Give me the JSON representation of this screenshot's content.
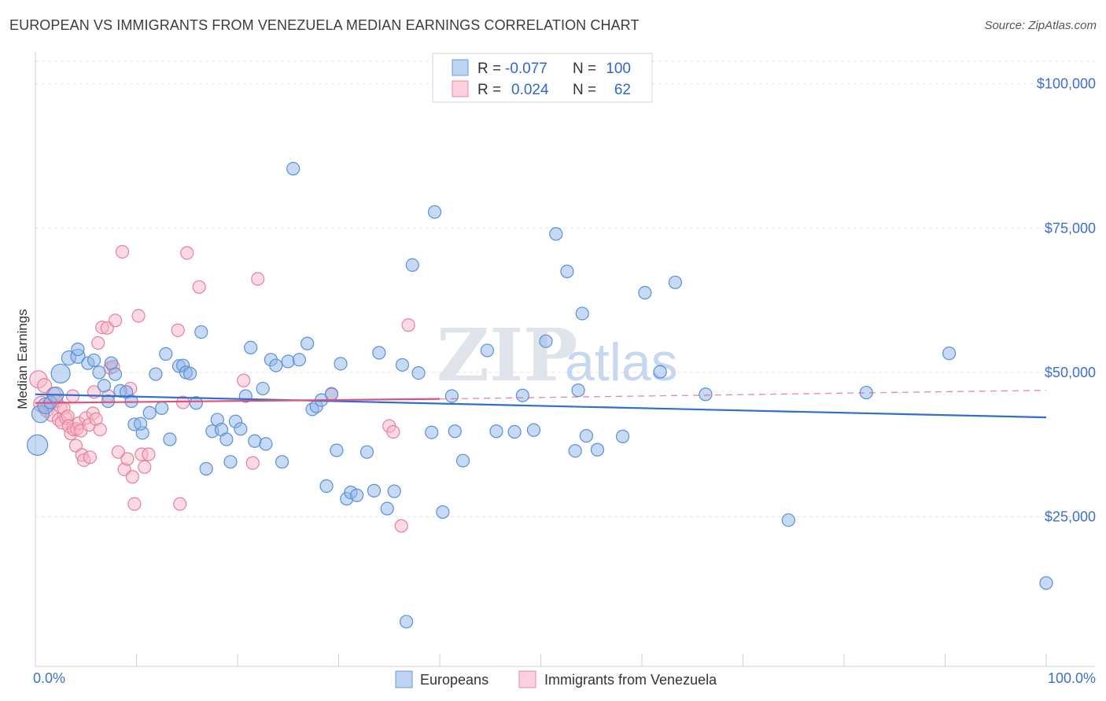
{
  "title": "EUROPEAN VS IMMIGRANTS FROM VENEZUELA MEDIAN EARNINGS CORRELATION CHART",
  "source": "Source: ZipAtlas.com",
  "watermark": {
    "zip": "ZIP",
    "atlas": "atlas"
  },
  "legend": {
    "r_label": "R =",
    "n_label": "N =",
    "rows": [
      {
        "r": "-0.077",
        "n": "100"
      },
      {
        "r": "0.024",
        "n": "62"
      }
    ]
  },
  "chart_data": {
    "type": "scatter",
    "title": "EUROPEAN VS IMMIGRANTS FROM VENEZUELA MEDIAN EARNINGS CORRELATION CHART",
    "xlabel": "",
    "ylabel": "Median Earnings",
    "xlim": [
      0,
      100
    ],
    "ylim": [
      0,
      105000
    ],
    "x_tick_labels": [
      "0.0%",
      "100.0%"
    ],
    "y_ticks": [
      25000,
      50000,
      75000,
      100000
    ],
    "y_tick_labels": [
      "$25,000",
      "$50,000",
      "$75,000",
      "$100,000"
    ],
    "grid": true,
    "series": [
      {
        "name": "Europeans",
        "color": "#8fb6ea",
        "stroke": "#5b8fd6",
        "trend_color": "#2f6fcf",
        "r": -0.077,
        "n": 100,
        "trend": {
          "x": [
            0,
            100
          ],
          "y": [
            46200,
            42200
          ]
        },
        "points": [
          [
            0.2,
            37400,
            13
          ],
          [
            0.5,
            42800,
            11
          ],
          [
            1.0,
            44200,
            10
          ],
          [
            1.5,
            44800,
            8
          ],
          [
            2.0,
            46100,
            10
          ],
          [
            2.5,
            49800,
            12
          ],
          [
            3.3,
            52500,
            9
          ],
          [
            4.2,
            52800,
            9
          ],
          [
            4.2,
            54000,
            8
          ],
          [
            5.2,
            51600,
            8
          ],
          [
            5.8,
            52100,
            8
          ],
          [
            6.3,
            50000,
            8
          ],
          [
            6.8,
            47700,
            8
          ],
          [
            7.2,
            45000,
            8
          ],
          [
            7.5,
            51600,
            8
          ],
          [
            7.9,
            49700,
            8
          ],
          [
            8.4,
            46800,
            8
          ],
          [
            9.0,
            46600,
            8
          ],
          [
            9.5,
            45000,
            8
          ],
          [
            9.8,
            41000,
            8
          ],
          [
            10.6,
            39500,
            8
          ],
          [
            10.4,
            41100,
            8
          ],
          [
            11.3,
            43000,
            8
          ],
          [
            11.9,
            49700,
            8
          ],
          [
            12.5,
            43800,
            8
          ],
          [
            12.9,
            53200,
            8
          ],
          [
            13.3,
            38400,
            8
          ],
          [
            14.2,
            51100,
            8
          ],
          [
            14.6,
            51200,
            8
          ],
          [
            14.9,
            50000,
            8
          ],
          [
            15.3,
            49800,
            8
          ],
          [
            15.9,
            44700,
            8
          ],
          [
            16.4,
            57000,
            8
          ],
          [
            16.9,
            33300,
            8
          ],
          [
            17.5,
            39800,
            8
          ],
          [
            18.0,
            41800,
            8
          ],
          [
            18.4,
            40100,
            8
          ],
          [
            18.9,
            38400,
            8
          ],
          [
            19.3,
            34500,
            8
          ],
          [
            19.8,
            41500,
            8
          ],
          [
            20.3,
            40200,
            8
          ],
          [
            20.8,
            45900,
            8
          ],
          [
            21.3,
            54300,
            8
          ],
          [
            21.7,
            38100,
            8
          ],
          [
            22.5,
            47200,
            8
          ],
          [
            22.8,
            37600,
            8
          ],
          [
            23.3,
            52200,
            8
          ],
          [
            23.8,
            51200,
            8
          ],
          [
            24.4,
            34500,
            8
          ],
          [
            25.0,
            51900,
            8
          ],
          [
            25.5,
            85300,
            8
          ],
          [
            26.1,
            52200,
            8
          ],
          [
            26.9,
            55000,
            8
          ],
          [
            27.4,
            43600,
            8
          ],
          [
            27.8,
            44100,
            8
          ],
          [
            28.3,
            45200,
            8
          ],
          [
            28.8,
            30300,
            8
          ],
          [
            29.3,
            46200,
            8
          ],
          [
            29.8,
            36500,
            8
          ],
          [
            30.2,
            51500,
            8
          ],
          [
            30.8,
            28100,
            8
          ],
          [
            31.2,
            29200,
            8
          ],
          [
            31.8,
            28700,
            8
          ],
          [
            32.8,
            36200,
            8
          ],
          [
            33.5,
            29500,
            8
          ],
          [
            34.0,
            53400,
            8
          ],
          [
            34.8,
            26400,
            8
          ],
          [
            35.5,
            29400,
            8
          ],
          [
            36.3,
            51300,
            8
          ],
          [
            36.7,
            6800,
            8
          ],
          [
            37.3,
            68600,
            8
          ],
          [
            37.9,
            49900,
            8
          ],
          [
            39.2,
            39600,
            8
          ],
          [
            39.5,
            77800,
            8
          ],
          [
            40.3,
            25800,
            8
          ],
          [
            41.2,
            45900,
            8
          ],
          [
            41.5,
            39800,
            8
          ],
          [
            42.3,
            34700,
            8
          ],
          [
            44.7,
            53800,
            8
          ],
          [
            45.6,
            39800,
            8
          ],
          [
            47.4,
            39700,
            8
          ],
          [
            48.2,
            46000,
            8
          ],
          [
            49.3,
            40000,
            8
          ],
          [
            50.5,
            55400,
            8
          ],
          [
            51.5,
            74000,
            8
          ],
          [
            52.6,
            67500,
            8
          ],
          [
            53.4,
            36400,
            8
          ],
          [
            53.7,
            46900,
            8
          ],
          [
            54.1,
            60200,
            8
          ],
          [
            54.5,
            39000,
            8
          ],
          [
            55.6,
            36600,
            8
          ],
          [
            58.1,
            38900,
            8
          ],
          [
            60.3,
            63800,
            8
          ],
          [
            61.8,
            50100,
            8
          ],
          [
            63.3,
            65600,
            8
          ],
          [
            66.3,
            46200,
            8
          ],
          [
            74.5,
            24400,
            8
          ],
          [
            82.2,
            46500,
            8
          ],
          [
            90.4,
            53300,
            8
          ],
          [
            100.0,
            13500,
            8
          ]
        ]
      },
      {
        "name": "Immigrants from Venezuela",
        "color": "#f7b6c8",
        "stroke": "#e77f9d",
        "trend_color": "#e0517a",
        "r": 0.024,
        "n": 62,
        "trend": {
          "x": [
            0,
            40
          ],
          "y": [
            44700,
            45400
          ]
        },
        "trend_dashed": {
          "x": [
            40,
            100
          ],
          "y": [
            45400,
            46900
          ]
        },
        "points": [
          [
            0.3,
            48800,
            11
          ],
          [
            0.6,
            44500,
            10
          ],
          [
            0.9,
            47700,
            9
          ],
          [
            1.1,
            43500,
            9
          ],
          [
            1.3,
            44400,
            8
          ],
          [
            1.6,
            42600,
            8
          ],
          [
            1.8,
            46200,
            9
          ],
          [
            2.1,
            45000,
            8
          ],
          [
            2.3,
            41800,
            8
          ],
          [
            2.5,
            44000,
            8
          ],
          [
            2.6,
            41300,
            8
          ],
          [
            2.8,
            43800,
            8
          ],
          [
            3.0,
            42100,
            8
          ],
          [
            3.2,
            42400,
            8
          ],
          [
            3.3,
            40700,
            8
          ],
          [
            3.5,
            39400,
            8
          ],
          [
            3.7,
            45900,
            8
          ],
          [
            3.8,
            40100,
            8
          ],
          [
            4.0,
            37300,
            8
          ],
          [
            4.1,
            40200,
            8
          ],
          [
            4.3,
            41200,
            8
          ],
          [
            4.5,
            39900,
            8
          ],
          [
            4.6,
            35700,
            8
          ],
          [
            4.8,
            34800,
            8
          ],
          [
            5.0,
            42100,
            8
          ],
          [
            5.3,
            40900,
            8
          ],
          [
            5.4,
            35300,
            8
          ],
          [
            5.7,
            42900,
            8
          ],
          [
            5.8,
            46600,
            8
          ],
          [
            6.0,
            41900,
            8
          ],
          [
            6.2,
            55100,
            8
          ],
          [
            6.4,
            40100,
            8
          ],
          [
            6.6,
            57800,
            8
          ],
          [
            7.1,
            57700,
            8
          ],
          [
            7.2,
            45900,
            8
          ],
          [
            7.4,
            50800,
            8
          ],
          [
            7.7,
            51000,
            8
          ],
          [
            7.9,
            59000,
            8
          ],
          [
            8.2,
            36200,
            8
          ],
          [
            8.6,
            70900,
            8
          ],
          [
            8.8,
            33200,
            8
          ],
          [
            9.1,
            35000,
            8
          ],
          [
            9.4,
            47200,
            8
          ],
          [
            9.6,
            31900,
            8
          ],
          [
            9.8,
            27200,
            8
          ],
          [
            10.2,
            59800,
            8
          ],
          [
            10.5,
            35800,
            8
          ],
          [
            10.8,
            33600,
            8
          ],
          [
            11.2,
            35800,
            8
          ],
          [
            14.1,
            57300,
            8
          ],
          [
            14.3,
            27200,
            8
          ],
          [
            14.6,
            44800,
            8
          ],
          [
            15.0,
            70700,
            8
          ],
          [
            16.2,
            64800,
            8
          ],
          [
            20.6,
            48600,
            8
          ],
          [
            21.5,
            34300,
            8
          ],
          [
            22.0,
            66200,
            8
          ],
          [
            29.3,
            46300,
            8
          ],
          [
            35.0,
            40700,
            8
          ],
          [
            35.4,
            39700,
            8
          ],
          [
            36.2,
            23400,
            8
          ],
          [
            36.9,
            58200,
            8
          ]
        ]
      }
    ]
  }
}
